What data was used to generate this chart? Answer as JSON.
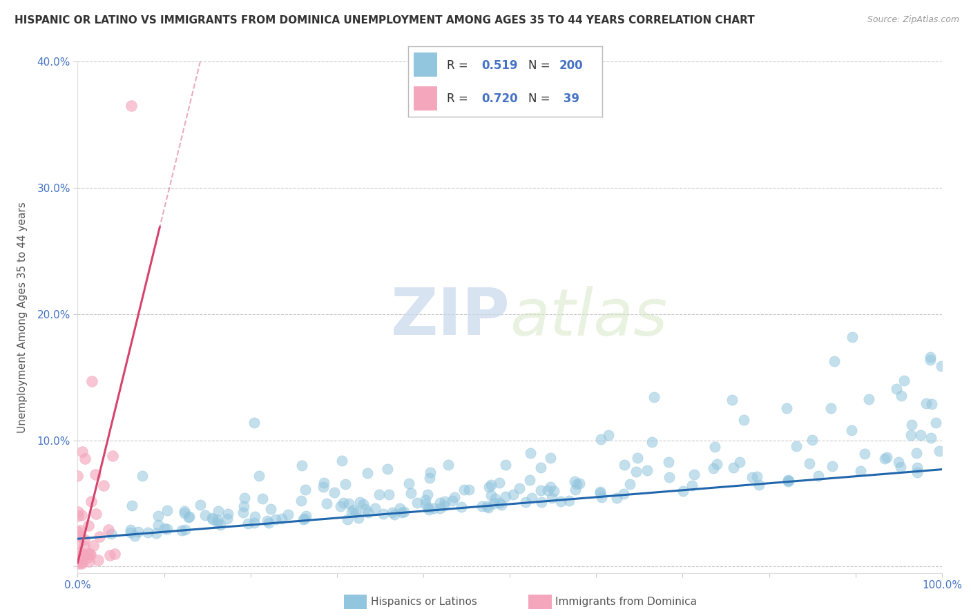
{
  "title": "HISPANIC OR LATINO VS IMMIGRANTS FROM DOMINICA UNEMPLOYMENT AMONG AGES 35 TO 44 YEARS CORRELATION CHART",
  "source": "Source: ZipAtlas.com",
  "ylabel": "Unemployment Among Ages 35 to 44 years",
  "xlim": [
    0,
    1.0
  ],
  "ylim": [
    -0.005,
    0.4
  ],
  "yticks": [
    0.0,
    0.1,
    0.2,
    0.3,
    0.4
  ],
  "yticklabels": [
    "",
    "10.0%",
    "20.0%",
    "30.0%",
    "40.0%"
  ],
  "blue_color": "#92c5de",
  "pink_color": "#f4a6bc",
  "blue_line_color": "#2166ac",
  "pink_line_color": "#d6446e",
  "blue_R": 0.519,
  "blue_N": 200,
  "pink_R": 0.72,
  "pink_N": 39,
  "legend_label_blue": "Hispanics or Latinos",
  "legend_label_pink": "Immigrants from Dominica",
  "watermark_zip": "ZIP",
  "watermark_atlas": "atlas",
  "background_color": "#ffffff",
  "grid_color": "#bbbbbb",
  "xtick_left_label": "0.0%",
  "xtick_right_label": "100.0%"
}
